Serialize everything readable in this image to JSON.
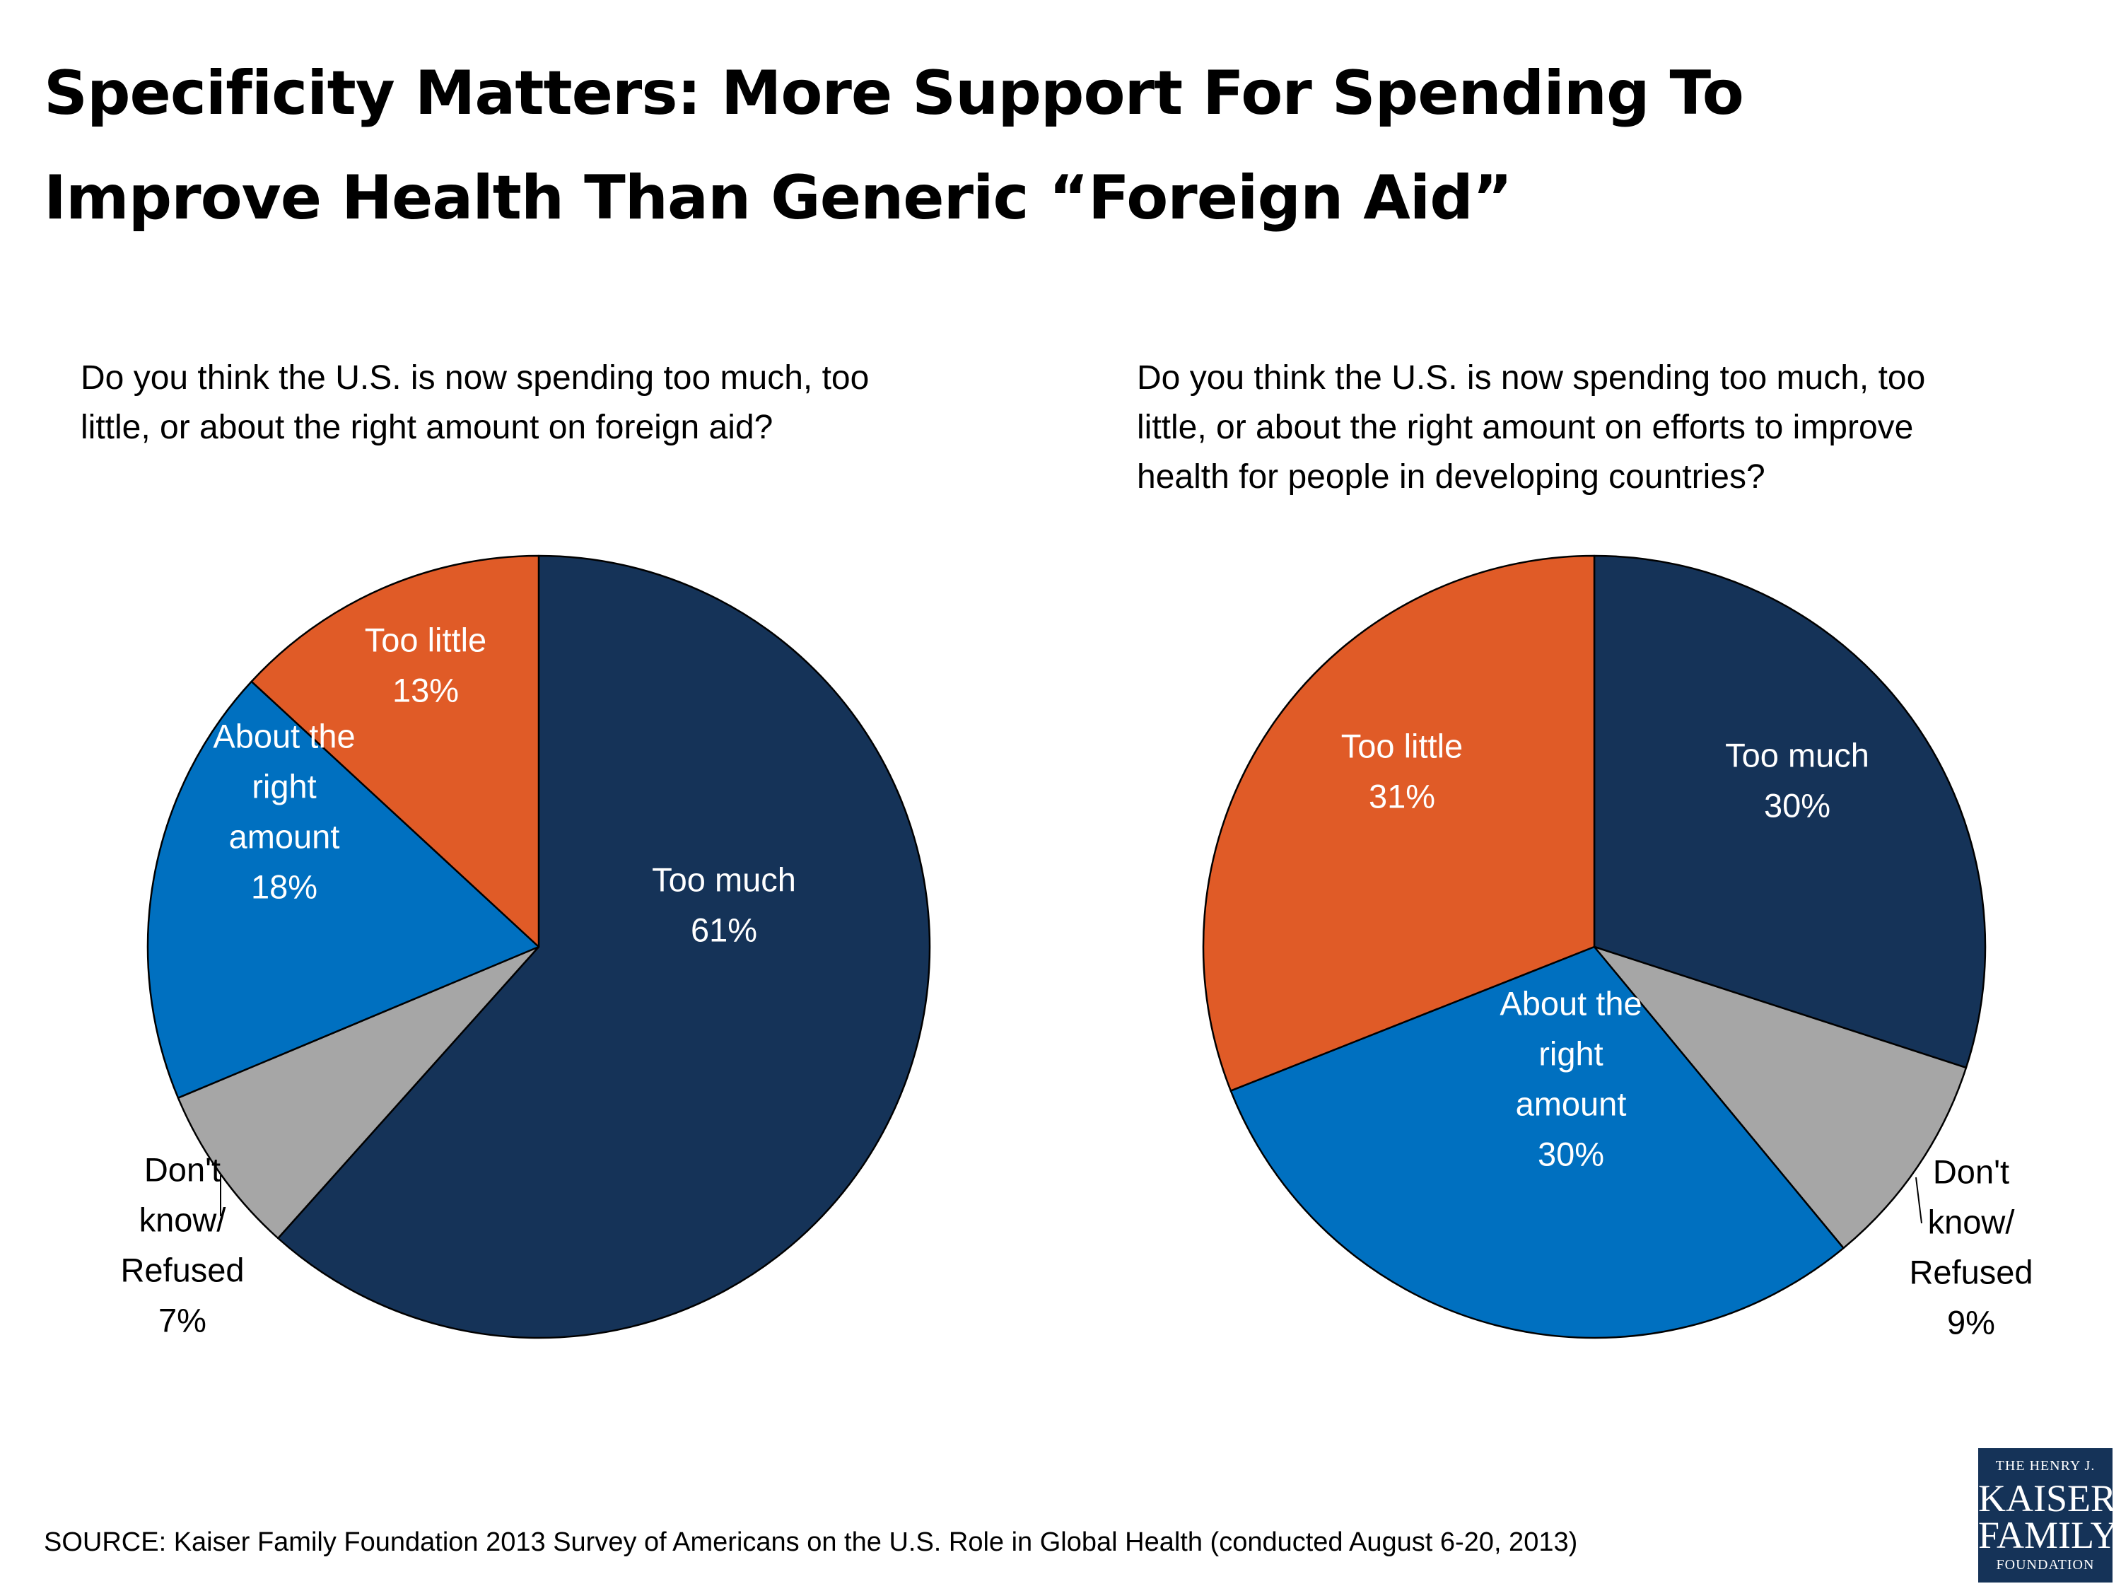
{
  "title": {
    "line1": "Specificity Matters: More Support For Spending To",
    "line2": "Improve Health Than Generic “Foreign Aid”"
  },
  "source": "SOURCE: Kaiser Family Foundation 2013 Survey of Americans on the U.S. Role in Global Health (conducted August 6-20, 2013)",
  "logo": {
    "line1": "THE HENRY J.",
    "line2": "KAISER",
    "line3": "FAMILY",
    "line4": "FOUNDATION"
  },
  "colors": {
    "too_much": "#153358",
    "too_little": "#e05b27",
    "about_right": "#0070c0",
    "dont_know": "#a6a6a6"
  },
  "chart_data": [
    {
      "type": "pie",
      "question": "Do you think the U.S. is now spending too much, too\nlittle, or about the right amount on foreign aid?",
      "start": "12 o'clock",
      "direction": "clockwise",
      "slices": [
        {
          "key": "too_much",
          "label": [
            "Too much",
            "61%"
          ],
          "value": 61
        },
        {
          "key": "dont_know",
          "label": [
            "Don't",
            "know/",
            "Refused",
            "7%"
          ],
          "value": 7
        },
        {
          "key": "about_right",
          "label": [
            "About the",
            "right",
            "amount",
            "18%"
          ],
          "value": 18
        },
        {
          "key": "too_little",
          "label": [
            "Too little",
            "13%"
          ],
          "value": 13
        }
      ]
    },
    {
      "type": "pie",
      "question": "Do you think the U.S. is now spending too much, too\nlittle, or about the right amount on efforts to improve\nhealth for people in developing countries?",
      "start": "12 o'clock",
      "direction": "clockwise",
      "slices": [
        {
          "key": "too_much",
          "label": [
            "Too much",
            "30%"
          ],
          "value": 30
        },
        {
          "key": "dont_know",
          "label": [
            "Don't",
            "know/",
            "Refused",
            "9%"
          ],
          "value": 9
        },
        {
          "key": "about_right",
          "label": [
            "About the",
            "right",
            "amount",
            "30%"
          ],
          "value": 30
        },
        {
          "key": "too_little",
          "label": [
            "Too little",
            "31%"
          ],
          "value": 31
        }
      ]
    }
  ]
}
